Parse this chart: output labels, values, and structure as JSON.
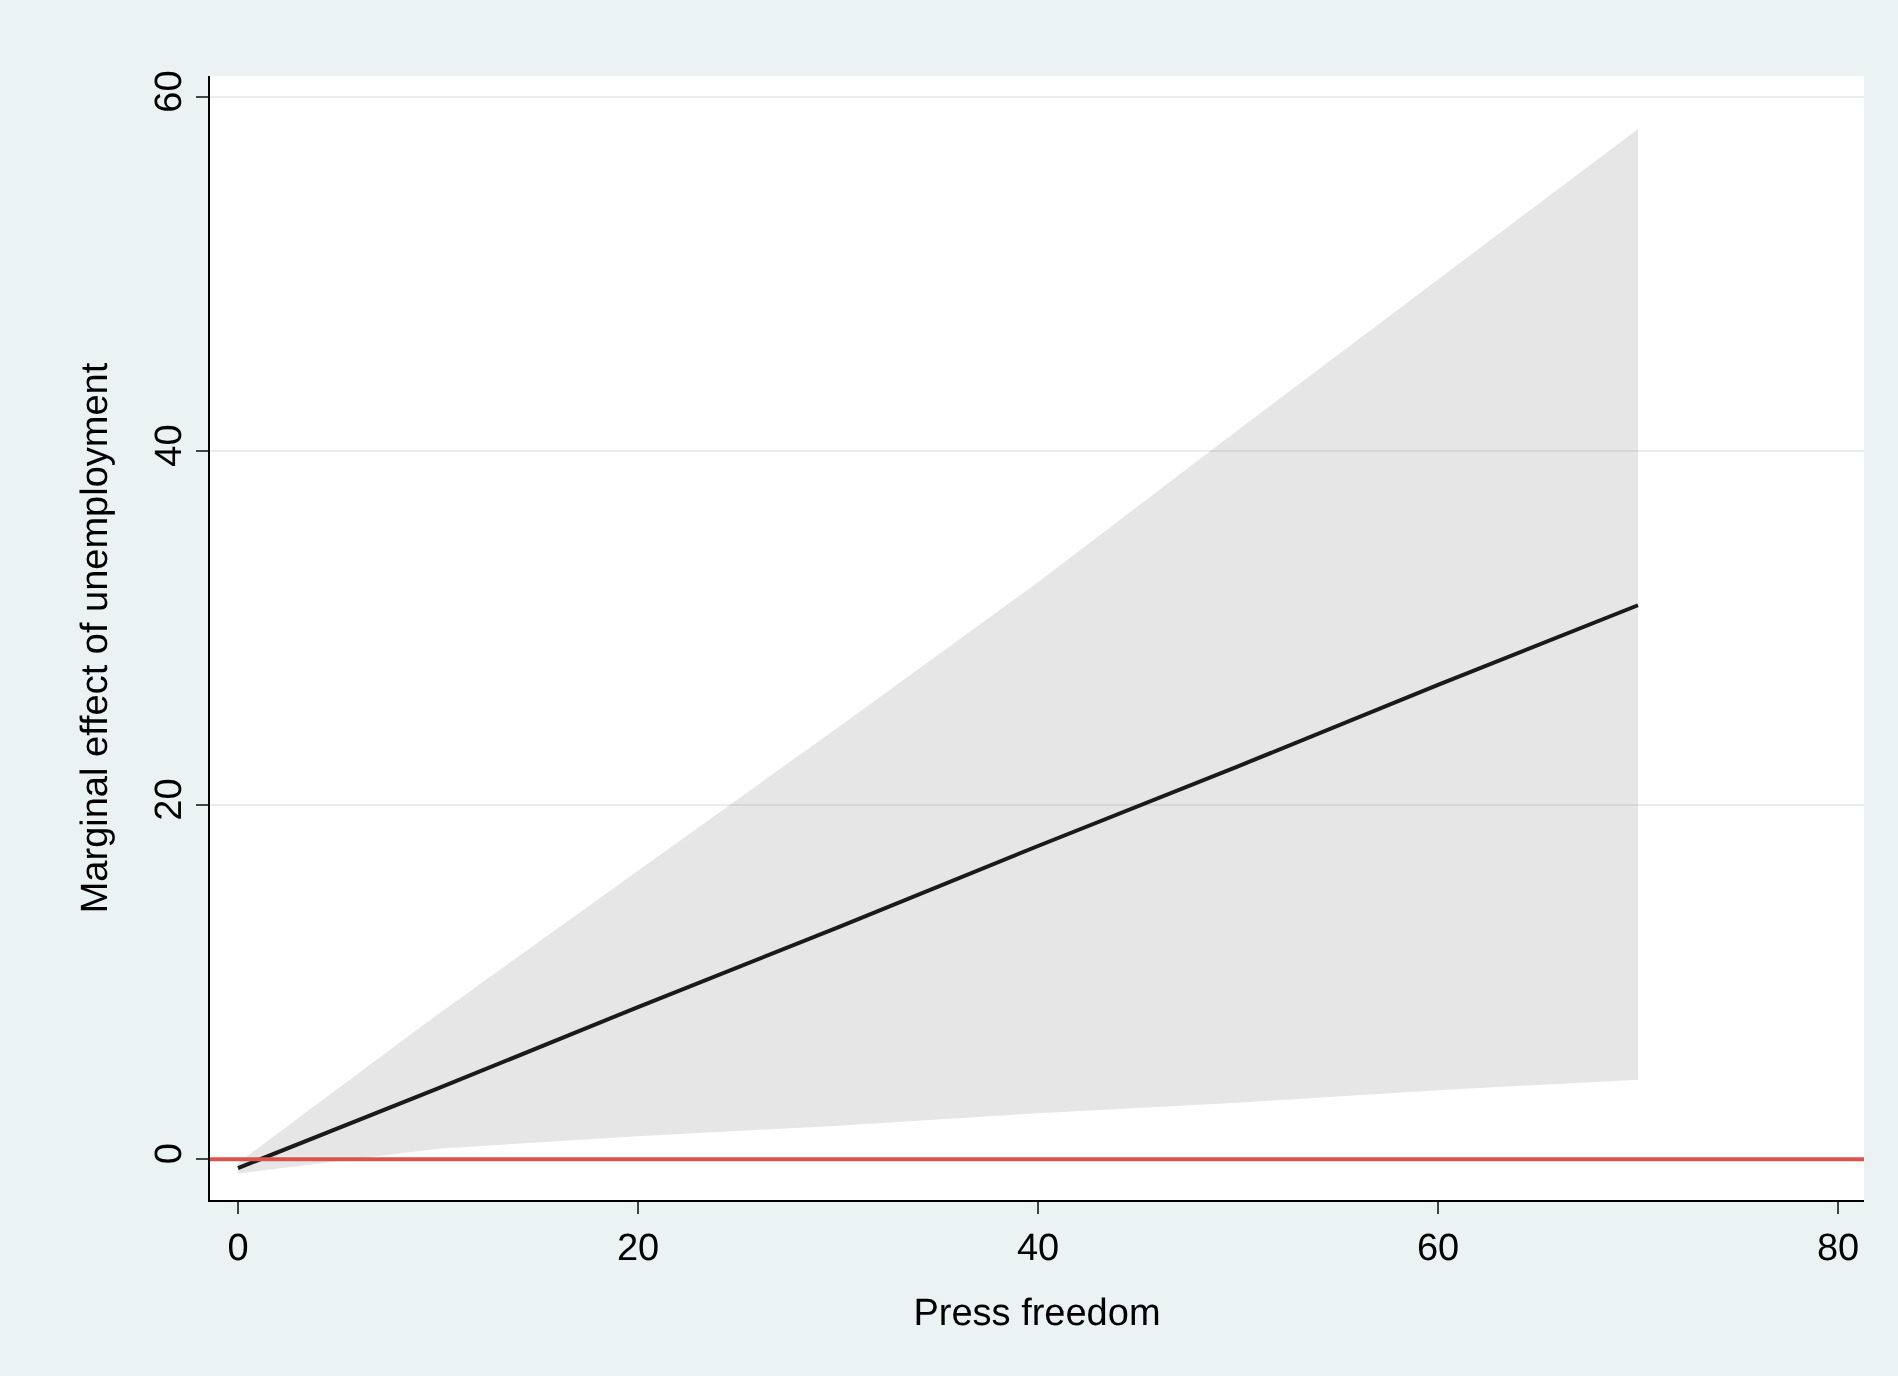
{
  "chart_data": {
    "type": "line",
    "xlabel": "Press freedom",
    "ylabel": "Marginal effect of unemployment",
    "x": [
      0,
      10,
      20,
      30,
      40,
      50,
      60,
      70
    ],
    "series": [
      {
        "color": "#1a1a1a",
        "values": [
          -0.5,
          4.0,
          8.6,
          13.1,
          17.7,
          22.2,
          26.8,
          31.3
        ],
        "lower": [
          -0.8,
          0.6,
          1.3,
          1.9,
          2.6,
          3.2,
          3.9,
          4.5
        ],
        "upper": [
          -0.2,
          8.2,
          16.3,
          24.4,
          32.6,
          41.2,
          49.7,
          58.2
        ]
      }
    ],
    "xlim": [
      -1.4,
      81.3
    ],
    "ylim": [
      -2.3,
      61.2
    ],
    "xticks": [
      0,
      20,
      40,
      60,
      80
    ],
    "yticks": [
      0,
      20,
      40,
      60
    ],
    "ref_lines": [
      {
        "axis": "y",
        "value": 0,
        "color": "#d9534f"
      }
    ],
    "grid": "y",
    "marker": "none",
    "line_style": "solid"
  }
}
